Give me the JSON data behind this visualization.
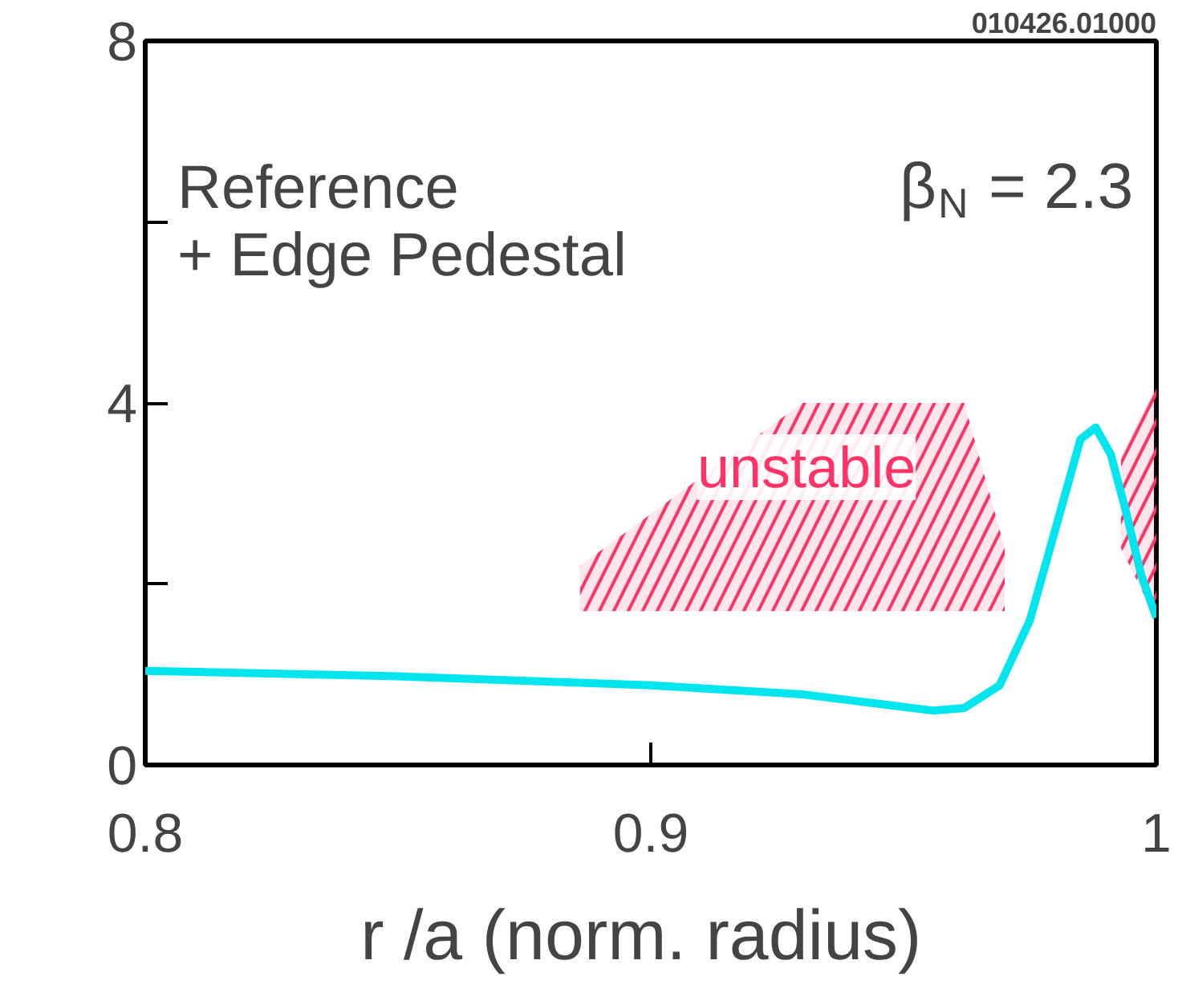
{
  "chart_data": {
    "type": "line",
    "xlabel": "r  /a (norm. radius)",
    "xlim": [
      0.8,
      1.0
    ],
    "xticks": [
      0.8,
      0.9,
      1
    ],
    "ylim": [
      0,
      8
    ],
    "yticks": [
      0,
      {
        "value": 2,
        "label": null
      },
      4,
      {
        "value": 6,
        "label": null
      },
      8
    ],
    "grid": false,
    "series": [
      {
        "color": "#00e5ee",
        "x": [
          0.8,
          0.85,
          0.9,
          0.93,
          0.946,
          0.956,
          0.962,
          0.969,
          0.975,
          0.981,
          0.985,
          0.988,
          0.991,
          0.994,
          0.997,
          1.0
        ],
        "values": [
          1.04,
          0.98,
          0.88,
          0.78,
          0.67,
          0.6,
          0.63,
          0.88,
          1.6,
          2.8,
          3.6,
          3.73,
          3.43,
          2.8,
          2.1,
          1.63
        ]
      },
      {
        "type": "area",
        "color": "#ff3366",
        "x": [
          0.886,
          0.93,
          0.962,
          0.97,
          0.97,
          0.886
        ],
        "values": [
          2.2,
          4.0,
          4.0,
          2.4,
          1.7,
          1.7
        ]
      },
      {
        "type": "area",
        "color": "#ff3366",
        "x": [
          0.993,
          1.0,
          1.0,
          0.993
        ],
        "values": [
          3.4,
          4.2,
          1.6,
          2.4
        ]
      }
    ],
    "annotations": [
      "010426.01000",
      "Reference\n+ Edge Pedestal",
      "β$_{N}$ = 2.3",
      "unstable"
    ]
  }
}
